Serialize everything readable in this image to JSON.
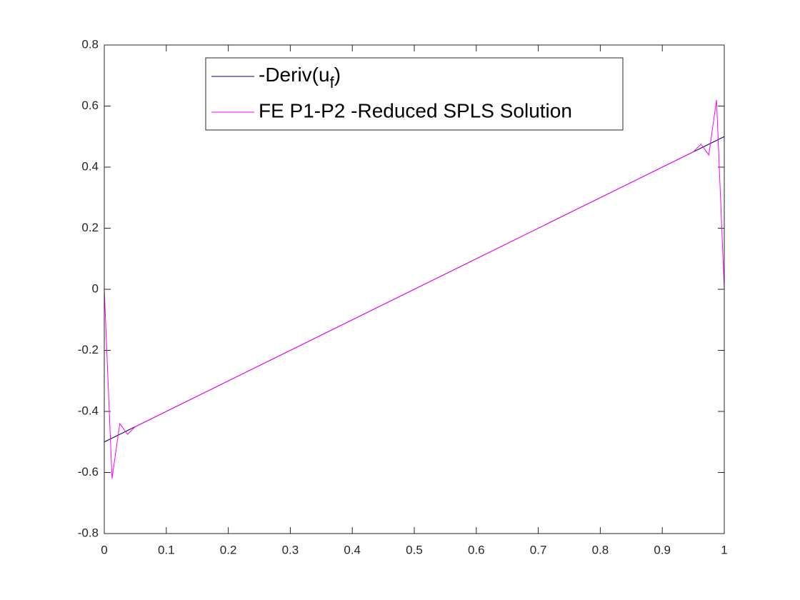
{
  "chart_data": {
    "type": "line",
    "series": [
      {
        "name": "-Deriv(u_f)",
        "color": "#000080",
        "x": [
          0,
          1
        ],
        "values": [
          -0.5,
          0.5
        ]
      },
      {
        "name": "FE P1-P2 -Reduced SPLS Solution",
        "color": "#ff00ff",
        "x": [
          0,
          0.0125,
          0.025,
          0.0375,
          0.05,
          0.95,
          0.9625,
          0.975,
          0.9875,
          1
        ],
        "values": [
          0,
          -0.62,
          -0.44,
          -0.475,
          -0.45,
          0.45,
          0.475,
          0.44,
          0.62,
          0
        ]
      }
    ],
    "xlim": [
      0,
      1
    ],
    "xticks": [
      0,
      0.1,
      0.2,
      0.3,
      0.4,
      0.5,
      0.6,
      0.7,
      0.8,
      0.9,
      1
    ],
    "ylim": [
      -0.8,
      0.8
    ],
    "yticks": [
      -0.8,
      -0.6,
      -0.4,
      -0.2,
      0,
      0.2,
      0.4,
      0.6,
      0.8
    ],
    "grid": false,
    "legend": "north"
  }
}
